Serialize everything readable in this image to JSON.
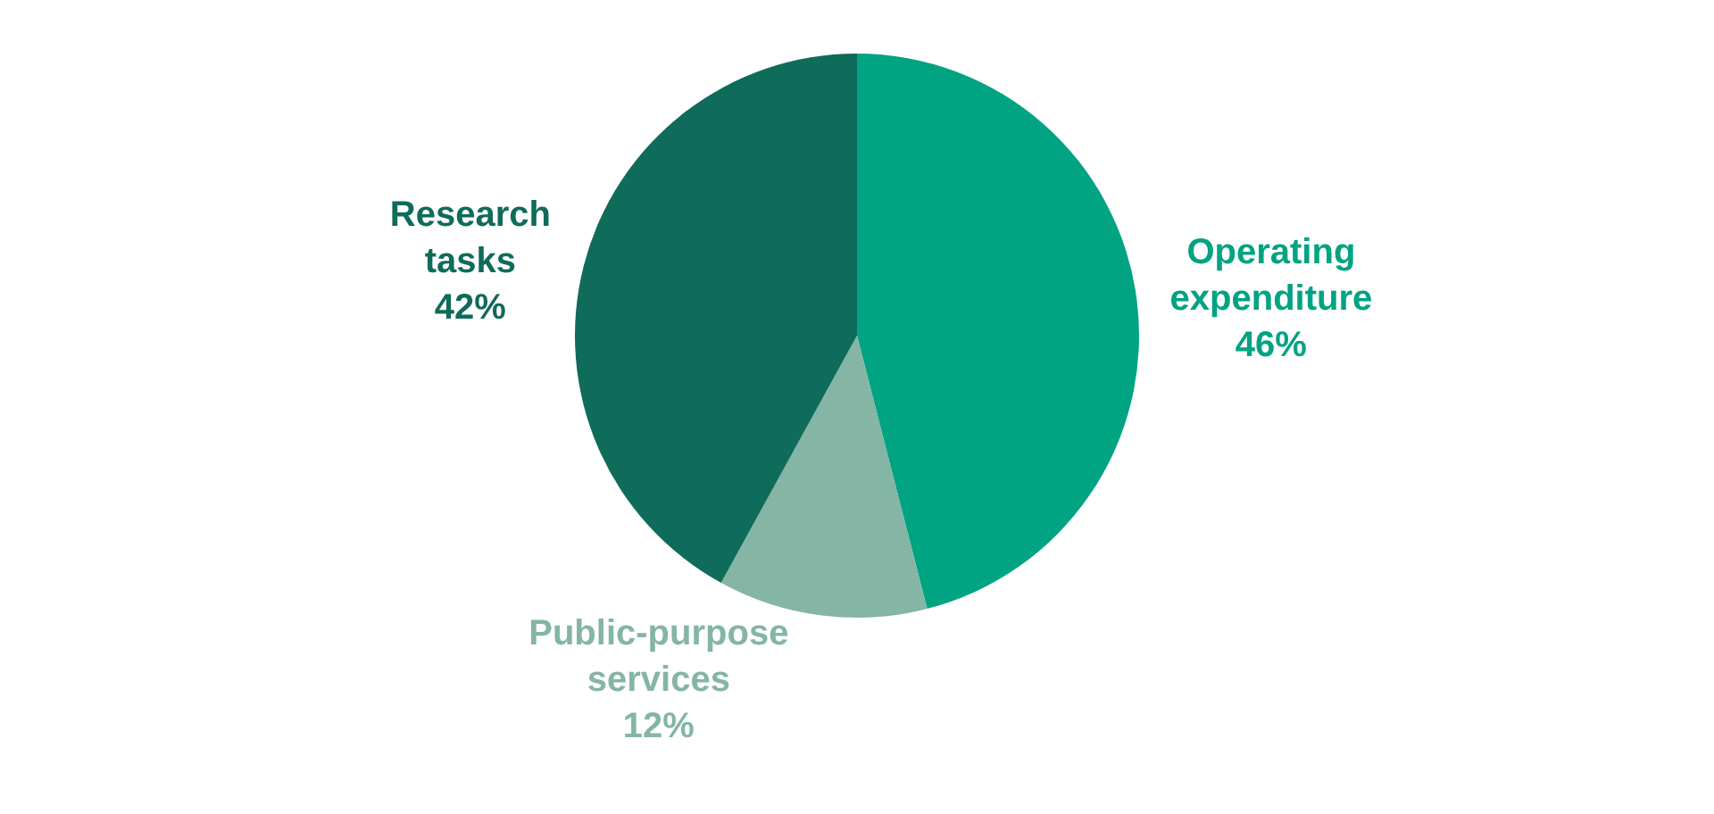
{
  "chart_data": {
    "type": "pie",
    "categories": [
      "Operating expenditure",
      "Public-purpose services",
      "Research tasks"
    ],
    "values": [
      46,
      12,
      42
    ],
    "value_labels": [
      "46%",
      "12%",
      "42%"
    ],
    "colors": [
      "#00a382",
      "#84b5a5",
      "#0f6b5a"
    ],
    "legend": false
  }
}
